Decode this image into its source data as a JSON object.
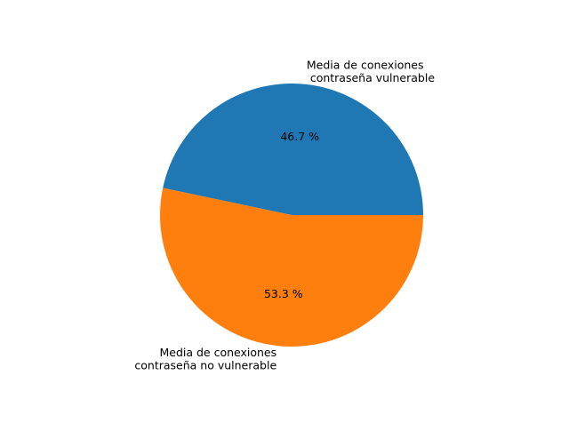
{
  "chart_data": {
    "type": "pie",
    "title": "",
    "slices": [
      {
        "label_lines": [
          "Media de conexiones",
          " contraseña vulnerable"
        ],
        "value": 46.7,
        "pct_label": "46.7 %",
        "color": "#1f77b4"
      },
      {
        "label_lines": [
          "Media de conexiones",
          "contraseña no vulnerable"
        ],
        "value": 53.3,
        "pct_label": "53.3 %",
        "color": "#ff7f0e"
      }
    ],
    "start_angle_deg": 0,
    "direction": "counterclockwise",
    "legend": "none"
  }
}
